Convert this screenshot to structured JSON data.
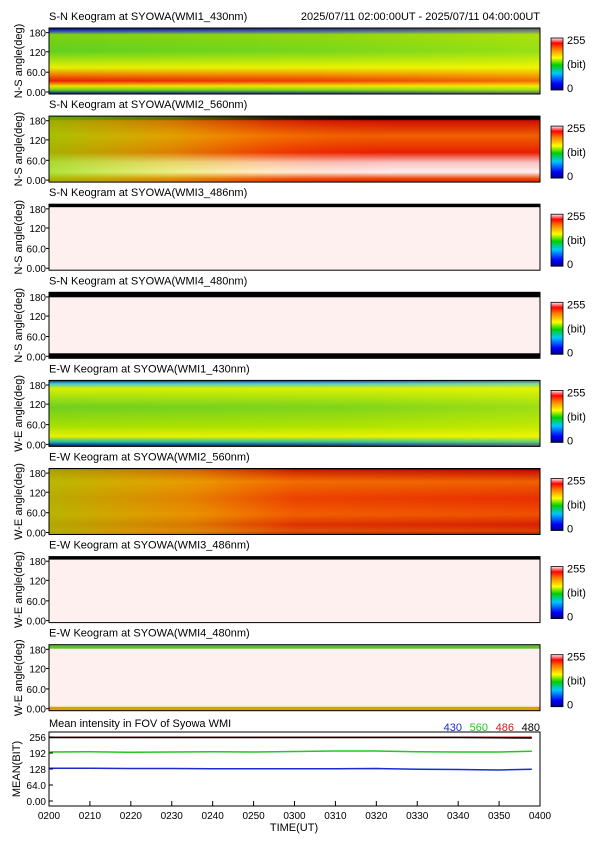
{
  "header_time_range": "2025/07/11 02:00:00UT - 2025/07/11 04:00:00UT",
  "colorbar": {
    "max_label": "255",
    "unit_label": "(bit)",
    "min_label": "0"
  },
  "keograms": [
    {
      "title": "S-N Keogram at SYOWA(WMI1_430nm)",
      "ylabel": "N-S angle(deg)",
      "yticks": [
        "180",
        "120",
        "60.0",
        "0.00"
      ],
      "pattern": "wmi1"
    },
    {
      "title": "S-N Keogram at SYOWA(WMI2_560nm)",
      "ylabel": "N-S angle(deg)",
      "yticks": [
        "180",
        "120",
        "60.0",
        "0.00"
      ],
      "pattern": "wmi2"
    },
    {
      "title": "S-N Keogram at SYOWA(WMI3_486nm)",
      "ylabel": "N-S angle(deg)",
      "yticks": [
        "180",
        "120",
        "60.0",
        "0.00"
      ],
      "pattern": "saturated"
    },
    {
      "title": "S-N Keogram at SYOWA(WMI4_480nm)",
      "ylabel": "N-S angle(deg)",
      "yticks": [
        "180",
        "120",
        "60.0",
        "0.00"
      ],
      "pattern": "saturated_edges"
    },
    {
      "title": "E-W Keogram at SYOWA(WMI1_430nm)",
      "ylabel": "W-E angle(deg)",
      "yticks": [
        "180",
        "120",
        "60.0",
        "0.00"
      ],
      "pattern": "wmi1_ew"
    },
    {
      "title": "E-W Keogram at SYOWA(WMI2_560nm)",
      "ylabel": "W-E angle(deg)",
      "yticks": [
        "180",
        "120",
        "60.0",
        "0.00"
      ],
      "pattern": "wmi2_ew"
    },
    {
      "title": "E-W Keogram at SYOWA(WMI3_486nm)",
      "ylabel": "W-E angle(deg)",
      "yticks": [
        "180",
        "120",
        "60.0",
        "0.00"
      ],
      "pattern": "saturated"
    },
    {
      "title": "E-W Keogram at SYOWA(WMI4_480nm)",
      "ylabel": "W-E angle(deg)",
      "yticks": [
        "180",
        "120",
        "60.0",
        "0.00"
      ],
      "pattern": "saturated_green_edges"
    }
  ],
  "chart_data": {
    "type": "line",
    "title": "Mean intensity in FOV of Syowa WMI",
    "xlabel": "TIME(UT)",
    "ylabel": "MEAN(BIT)",
    "xlim": [
      "0200",
      "0400"
    ],
    "ylim": [
      0,
      256
    ],
    "x_tick_labels": [
      "0200",
      "0210",
      "0220",
      "0230",
      "0240",
      "0250",
      "0300",
      "0310",
      "0320",
      "0330",
      "0340",
      "0350",
      "0400"
    ],
    "y_tick_labels": [
      "256",
      "192",
      "128",
      "64.0",
      "0.00"
    ],
    "x": [
      "0200",
      "0210",
      "0220",
      "0230",
      "0240",
      "0250",
      "0300",
      "0310",
      "0320",
      "0330",
      "0340",
      "0350",
      "0358"
    ],
    "series": [
      {
        "name": "430",
        "color": "#1a2bd0",
        "values": [
          131,
          131,
          130,
          130,
          129,
          129,
          129,
          129,
          130,
          127,
          126,
          124,
          127
        ]
      },
      {
        "name": "560",
        "color": "#22c822",
        "values": [
          196,
          197,
          195,
          196,
          197,
          196,
          198,
          200,
          200,
          197,
          196,
          196,
          199
        ]
      },
      {
        "name": "486",
        "color": "#c81e1e",
        "values": [
          255,
          255,
          255,
          255,
          255,
          255,
          255,
          255,
          255,
          255,
          255,
          255,
          255
        ]
      },
      {
        "name": "480",
        "color": "#000000",
        "values": [
          254,
          254,
          254,
          254,
          254,
          254,
          254,
          254,
          254,
          254,
          254,
          253,
          252
        ]
      }
    ]
  }
}
